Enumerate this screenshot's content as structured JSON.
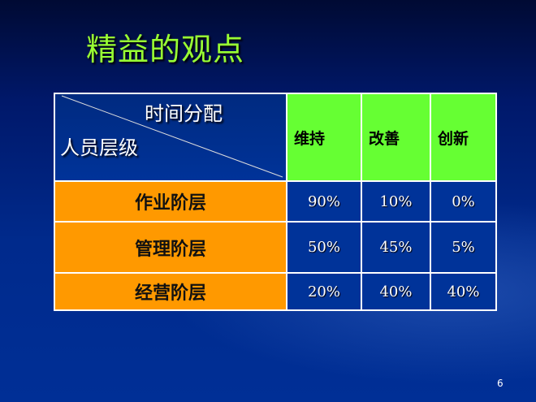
{
  "slide": {
    "title": "精益的观点",
    "page_number": "6"
  },
  "table": {
    "corner": {
      "top": "时间分配",
      "bottom": "人员层级"
    },
    "columns": [
      "维持",
      "改善",
      "创新"
    ],
    "rows": [
      {
        "label": "作业阶层",
        "values": [
          "90%",
          "10%",
          "0%"
        ]
      },
      {
        "label": "管理阶层",
        "values": [
          "50%",
          "45%",
          "5%"
        ]
      },
      {
        "label": "经营阶层",
        "values": [
          "20%",
          "40%",
          "40%"
        ]
      }
    ]
  },
  "colors": {
    "title": "#99ff33",
    "header": "#66ff33",
    "row_label": "#ff9900",
    "cell": "#003399"
  }
}
